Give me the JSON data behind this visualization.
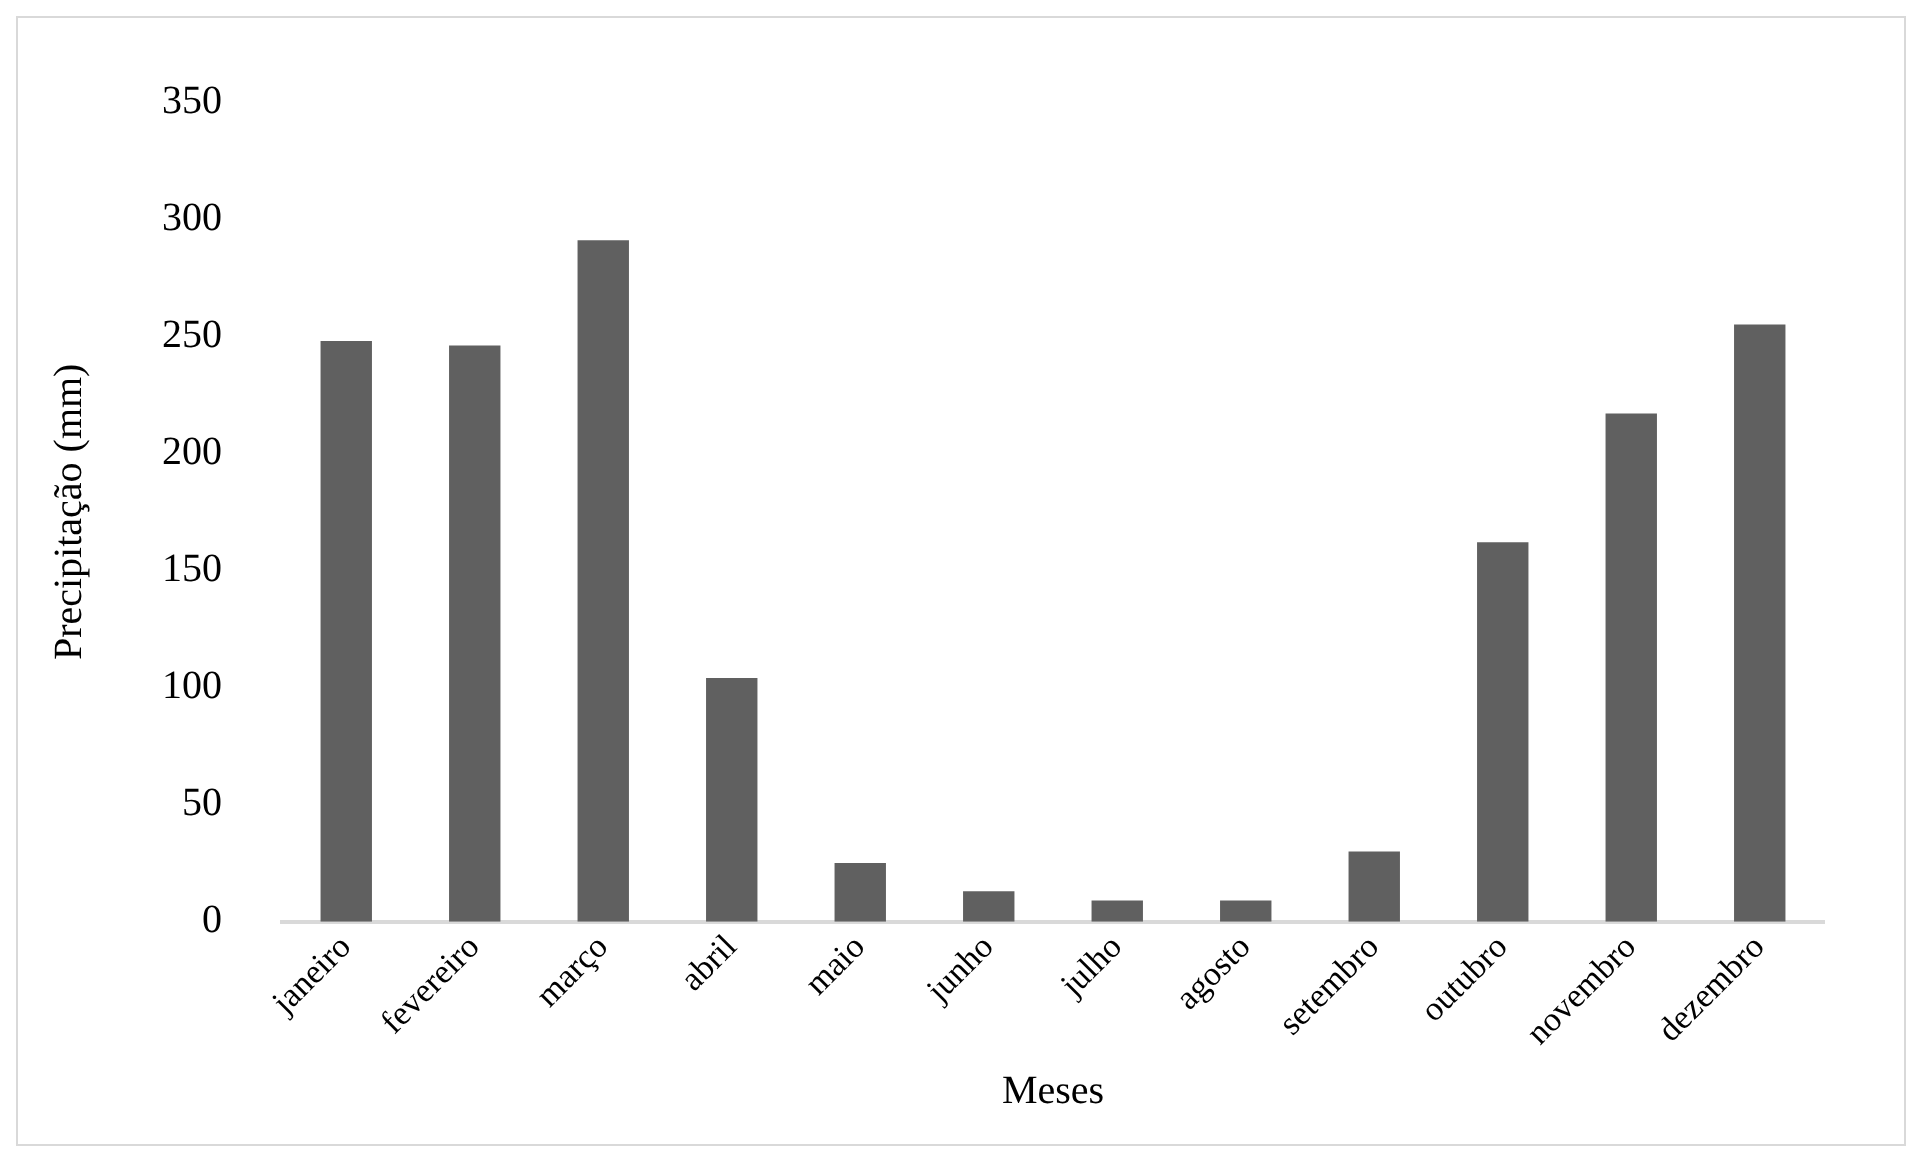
{
  "chart_data": {
    "type": "bar",
    "xlabel": "Meses",
    "ylabel": "Precipitação (mm)",
    "categories": [
      "janeiro",
      "fevereiro",
      "março",
      "abril",
      "maio",
      "junho",
      "julho",
      "agosto",
      "setembro",
      "outubro",
      "novembro",
      "dezembro"
    ],
    "values": [
      248,
      246,
      291,
      104,
      25,
      13,
      9,
      9,
      30,
      162,
      217,
      255
    ],
    "color": "#606060",
    "ylim": [
      0,
      350
    ],
    "yticks": [
      0,
      50,
      100,
      150,
      200,
      250,
      300,
      350
    ],
    "grid": false,
    "legend": false
  }
}
